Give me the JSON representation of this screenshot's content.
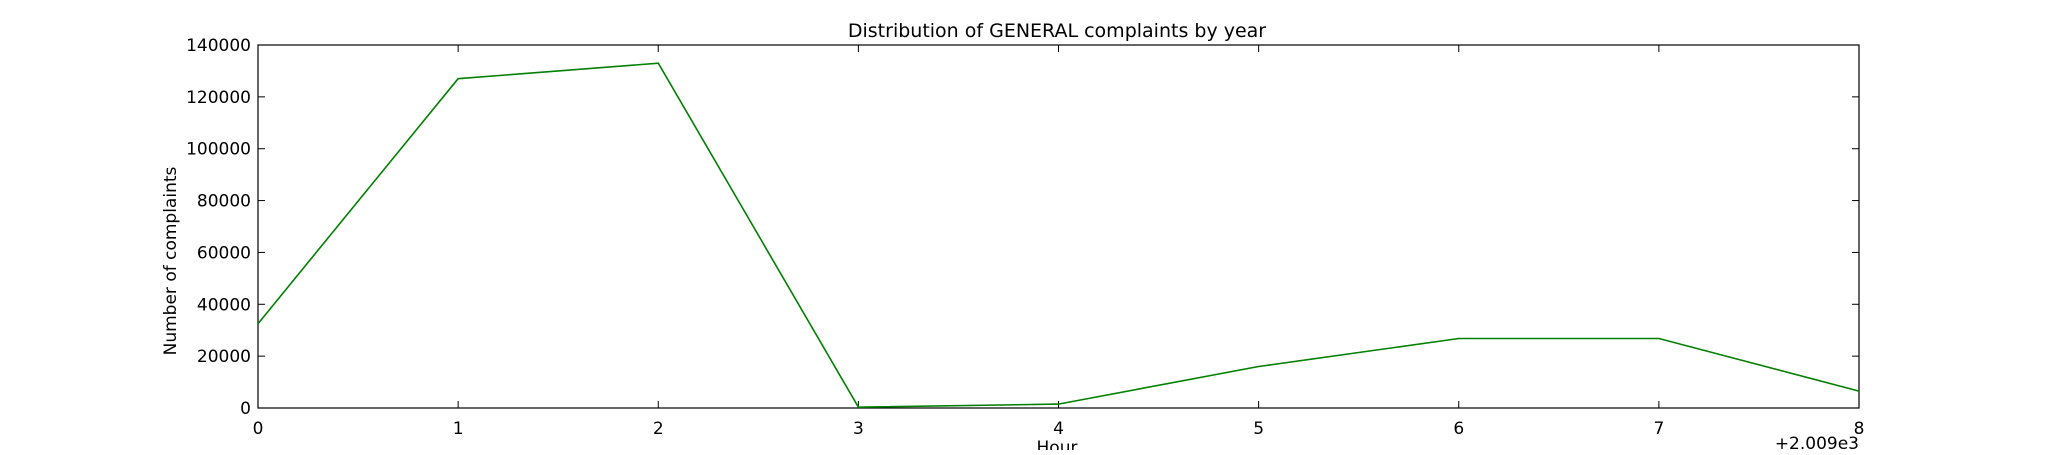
{
  "chart_data": {
    "type": "line",
    "title": "Distribution of  GENERAL complaints by year",
    "xlabel": "Hour",
    "ylabel": "Number of complaints",
    "x_offset_label": "+2.009e3",
    "x": [
      0,
      1,
      2,
      3,
      4,
      5,
      6,
      7,
      8
    ],
    "xlim": [
      0,
      8
    ],
    "ylim": [
      0,
      140000
    ],
    "x_ticks": [
      0,
      1,
      2,
      3,
      4,
      5,
      6,
      7,
      8
    ],
    "y_ticks": [
      0,
      20000,
      40000,
      60000,
      80000,
      100000,
      120000,
      140000
    ],
    "grid": false,
    "series": [
      {
        "color": "#008000",
        "values": [
          32500,
          127000,
          133000,
          300,
          1500,
          16000,
          26800,
          26800,
          6500
        ]
      }
    ]
  }
}
